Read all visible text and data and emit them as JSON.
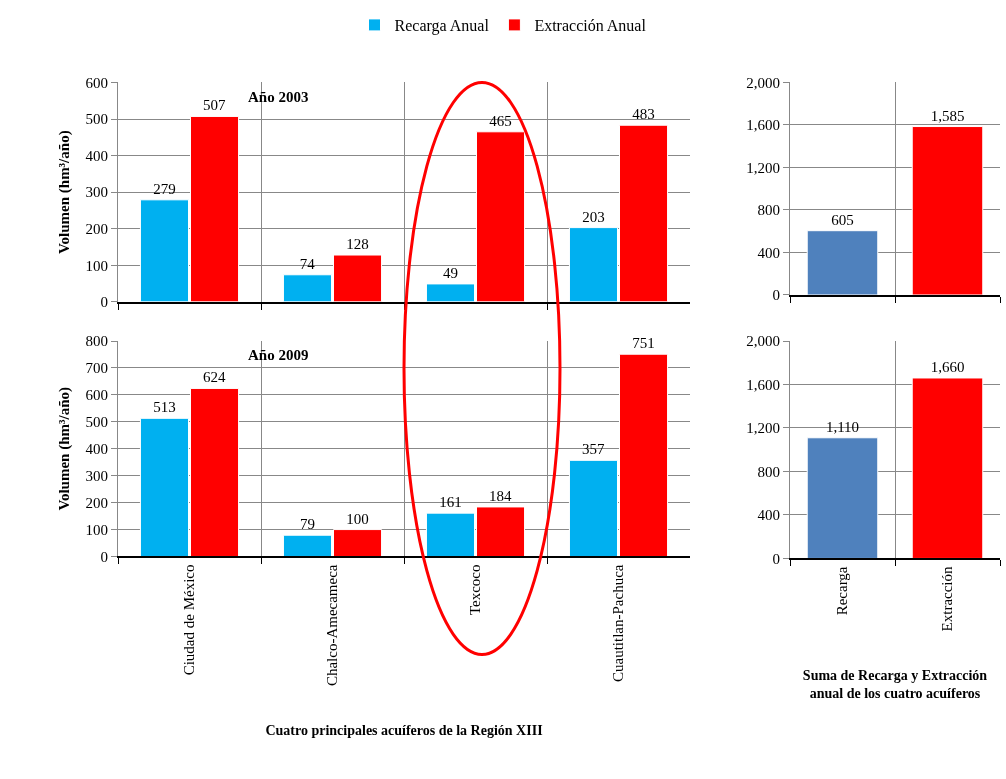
{
  "chart_data": [
    {
      "type": "bar",
      "categories": [
        "Ciudad de México",
        "Chalco-Amecameca",
        "Texcoco",
        "Cuautitlan-Pachuca"
      ],
      "ylabel": "Volumen (hm³/año)",
      "annotations": [
        "Año 2003"
      ],
      "series": [
        {
          "name": "Recarga Anual",
          "color": "#00b0f0",
          "values": [
            279,
            74,
            49,
            203
          ]
        },
        {
          "name": "Extracción Anual",
          "color": "#ff0000",
          "values": [
            507,
            128,
            465,
            483
          ]
        }
      ],
      "ylim": [
        0,
        600
      ],
      "yticks": [
        0,
        100,
        200,
        300,
        400,
        500,
        600
      ],
      "grid": true,
      "legend": "top",
      "data_labels": true,
      "tick_labels": "y"
    },
    {
      "type": "bar",
      "categories": [
        "Ciudad de México",
        "Chalco-Amecameca",
        "Texcoco",
        "Cuautitlan-Pachuca"
      ],
      "ylabel": "Volumen (hm³/año)",
      "xlabel": "Cuatro principales acuíferos de la Región XIII",
      "annotations": [
        "Año 2009"
      ],
      "series": [
        {
          "color": "#00b0f0",
          "values": [
            513,
            79,
            161,
            357
          ]
        },
        {
          "color": "#ff0000",
          "values": [
            624,
            100,
            184,
            751
          ]
        }
      ],
      "ylim": [
        0,
        800
      ],
      "yticks": [
        0,
        100,
        200,
        300,
        400,
        500,
        600,
        700,
        800
      ],
      "grid": true,
      "data_labels": true
    },
    {
      "type": "bar",
      "categories": [
        "Recarga",
        "Extracción"
      ],
      "values": [
        605,
        1585
      ],
      "value_labels": [
        "605",
        "1,585"
      ],
      "colors": [
        "#4f81bd",
        "#ff0000"
      ],
      "ylim": [
        0,
        2000
      ],
      "yticks": [
        0,
        {
          "value": 400,
          "label": "400"
        },
        {
          "value": 800,
          "label": "800"
        },
        {
          "value": 1200,
          "label": "1,200"
        },
        {
          "value": 1600,
          "label": "1,600"
        },
        {
          "value": 2000,
          "label": "2,000"
        }
      ],
      "grid": true,
      "tick_labels": "y"
    },
    {
      "type": "bar",
      "categories": [
        "Recarga",
        "Extracción"
      ],
      "values": [
        1110,
        1660
      ],
      "value_labels": [
        "1,110",
        "1,660"
      ],
      "colors": [
        "#4f81bd",
        "#ff0000"
      ],
      "xlabel": "Suma de Recarga y Extracción anual de los cuatro acuíferos",
      "ylim": [
        0,
        2000
      ],
      "yticks": [
        0,
        {
          "value": 400,
          "label": "400"
        },
        {
          "value": 800,
          "label": "800"
        },
        {
          "value": 1200,
          "label": "1,200"
        },
        {
          "value": 1600,
          "label": "1,600"
        },
        {
          "value": 2000,
          "label": "2,000"
        }
      ],
      "grid": true
    }
  ]
}
